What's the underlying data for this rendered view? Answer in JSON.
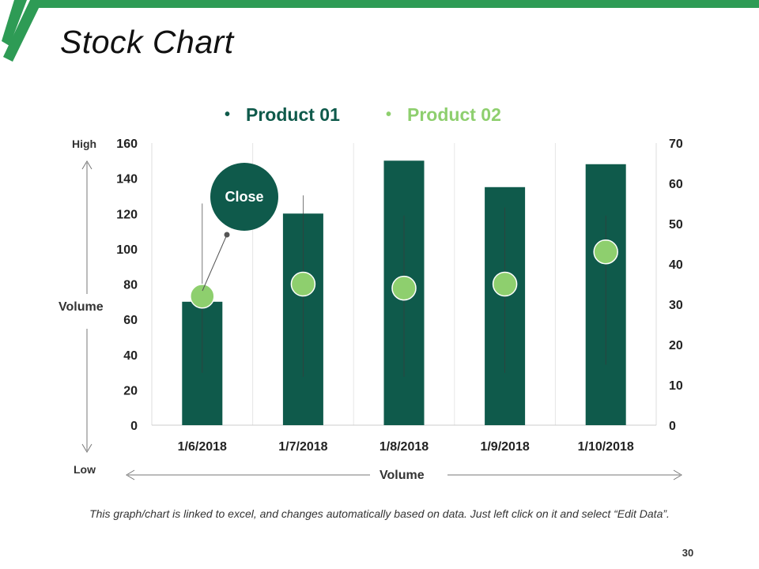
{
  "slide": {
    "title": "Stock Chart",
    "footnote": "This graph/chart is linked to excel, and changes automatically based on data. Just left click on it and select “Edit Data”.",
    "page_number": "30",
    "colors": {
      "accent_dark": "#0f5a4b",
      "accent_light": "#8ecf6e",
      "accent_stripe": "#2e9b55"
    }
  },
  "annotations": {
    "high_label": "High",
    "low_label": "Low",
    "volume_left_label": "Volume",
    "volume_bottom_label": "Volume",
    "callout_label": "Close"
  },
  "chart_data": {
    "type": "bar",
    "title": "",
    "categories": [
      "1/6/2018",
      "1/7/2018",
      "1/8/2018",
      "1/9/2018",
      "1/10/2018"
    ],
    "series": [
      {
        "name": "Product 01",
        "type": "bar",
        "axis": "left",
        "color": "#0f5a4b",
        "values": [
          70,
          120,
          150,
          135,
          148
        ]
      },
      {
        "name": "Product 02",
        "type": "stock",
        "axis": "right",
        "color": "#8ecf6e",
        "high": [
          55,
          57,
          52,
          54,
          52
        ],
        "low": [
          13,
          12,
          12,
          13,
          15
        ],
        "close": [
          32,
          35,
          34,
          35,
          43
        ]
      }
    ],
    "y_left": {
      "ylim": [
        0,
        160
      ],
      "ticks": [
        0,
        20,
        40,
        60,
        80,
        100,
        120,
        140,
        160
      ]
    },
    "y_right": {
      "ylim": [
        0,
        70
      ],
      "ticks": [
        0,
        10,
        20,
        30,
        40,
        50,
        60,
        70
      ]
    },
    "grid": "vertical",
    "legend_position": "top"
  }
}
